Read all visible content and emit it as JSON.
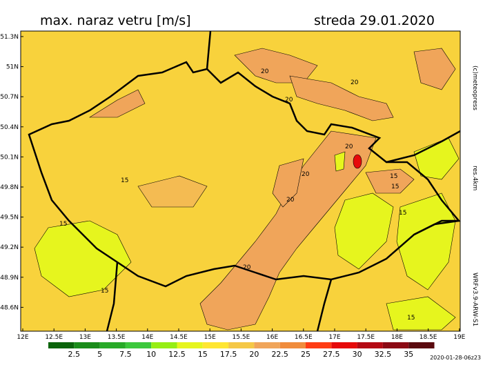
{
  "header": {
    "title": "max. naraz vetru [m/s]",
    "date": "streda 29.01.2020"
  },
  "lat_labels": [
    "51.3N",
    "51N",
    "50.7N",
    "50.4N",
    "50.1N",
    "49.8N",
    "49.5N",
    "49.2N",
    "48.9N",
    "48.6N"
  ],
  "lon_labels": [
    "12E",
    "12.5E",
    "13E",
    "13.5E",
    "14E",
    "14.5E",
    "15E",
    "15.5E",
    "16E",
    "16.5E",
    "17E",
    "17.5E",
    "18E",
    "18.5E",
    "19E"
  ],
  "contour_labels": [
    "20",
    "20",
    "20",
    "20",
    "20",
    "20",
    "20",
    "15",
    "15",
    "15",
    "15",
    "15",
    "15",
    "15"
  ],
  "colorbar": {
    "labels": [
      "2.5",
      "5",
      "7.5",
      "10",
      "12.5",
      "15",
      "17.5",
      "20",
      "22.5",
      "25",
      "27.5",
      "30",
      "32.5",
      "35"
    ],
    "colors": [
      "#0b640b",
      "#1a8c1a",
      "#28aa28",
      "#3cc83c",
      "#96ee14",
      "#e6f51e",
      "#ffe632",
      "#f5c846",
      "#f0a55a",
      "#f08c3c",
      "#ff3c14",
      "#e60a0a",
      "#b40a14",
      "#8c0a14",
      "#5a0a0f"
    ]
  },
  "side": {
    "copyright": "(c)meteopress",
    "resolution": "res.4km",
    "model": "WRFv3.9-ARW-S1"
  },
  "run": "2020-01-28-06z23"
}
